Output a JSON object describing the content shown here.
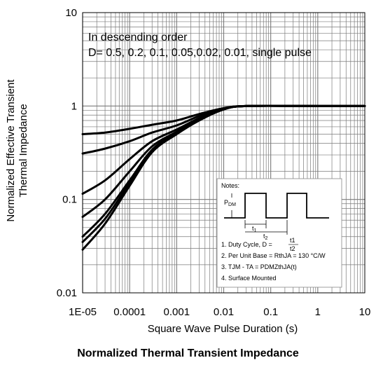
{
  "chart_data": {
    "type": "line",
    "title": "Normalized Thermal Transient Impedance",
    "xlabel": "Square Wave Pulse Duration (s)",
    "ylabel_lines": [
      "Normalized Effective Transient",
      "Thermal Impedance"
    ],
    "xscale": "log",
    "yscale": "log",
    "xlim": [
      1e-05,
      10
    ],
    "ylim": [
      0.01,
      10
    ],
    "x_tick_labels": [
      "1E-05",
      "0.0001",
      "0.001",
      "0.01",
      "0.1",
      "1",
      "10"
    ],
    "y_tick_labels": [
      "10",
      "1",
      "0.1",
      "0.01"
    ],
    "grid": true,
    "annotation_lines": [
      "In descending order",
      "D= 0.5, 0.2, 0.1, 0.05,0.02, 0.01, single pulse"
    ],
    "series": [
      {
        "values": [
          [
            1e-05,
            0.5
          ],
          [
            3e-05,
            0.52
          ],
          [
            0.0001,
            0.57
          ],
          [
            0.0003,
            0.63
          ],
          [
            0.001,
            0.7
          ],
          [
            0.003,
            0.82
          ],
          [
            0.01,
            0.95
          ],
          [
            0.03,
            1
          ],
          [
            1,
            1
          ],
          [
            10,
            1
          ]
        ]
      },
      {
        "values": [
          [
            1e-05,
            0.31
          ],
          [
            3e-05,
            0.35
          ],
          [
            0.0001,
            0.42
          ],
          [
            0.0003,
            0.52
          ],
          [
            0.001,
            0.62
          ],
          [
            0.003,
            0.78
          ],
          [
            0.01,
            0.94
          ],
          [
            0.03,
            1
          ],
          [
            1,
            1
          ],
          [
            10,
            1
          ]
        ]
      },
      {
        "values": [
          [
            1e-05,
            0.115
          ],
          [
            3e-05,
            0.16
          ],
          [
            0.0001,
            0.27
          ],
          [
            0.0003,
            0.42
          ],
          [
            0.001,
            0.56
          ],
          [
            0.003,
            0.74
          ],
          [
            0.01,
            0.93
          ],
          [
            0.03,
            1
          ],
          [
            1,
            1
          ],
          [
            10,
            1
          ]
        ]
      },
      {
        "values": [
          [
            1e-05,
            0.065
          ],
          [
            3e-05,
            0.1
          ],
          [
            0.0001,
            0.2
          ],
          [
            0.0003,
            0.37
          ],
          [
            0.001,
            0.53
          ],
          [
            0.003,
            0.72
          ],
          [
            0.01,
            0.93
          ],
          [
            0.03,
            1
          ],
          [
            1,
            1
          ],
          [
            10,
            1
          ]
        ]
      },
      {
        "values": [
          [
            1e-05,
            0.04
          ],
          [
            3e-05,
            0.07
          ],
          [
            0.0001,
            0.16
          ],
          [
            0.0003,
            0.34
          ],
          [
            0.001,
            0.52
          ],
          [
            0.003,
            0.71
          ],
          [
            0.01,
            0.92
          ],
          [
            0.03,
            1
          ],
          [
            1,
            1
          ],
          [
            10,
            1
          ]
        ]
      },
      {
        "values": [
          [
            1e-05,
            0.035
          ],
          [
            3e-05,
            0.062
          ],
          [
            0.0001,
            0.15
          ],
          [
            0.0003,
            0.33
          ],
          [
            0.001,
            0.51
          ],
          [
            0.003,
            0.71
          ],
          [
            0.01,
            0.92
          ],
          [
            0.03,
            1
          ],
          [
            1,
            1
          ],
          [
            10,
            1
          ]
        ]
      },
      {
        "values": [
          [
            1e-05,
            0.029
          ],
          [
            3e-05,
            0.055
          ],
          [
            0.0001,
            0.14
          ],
          [
            0.0003,
            0.32
          ],
          [
            0.001,
            0.5
          ],
          [
            0.003,
            0.7
          ],
          [
            0.01,
            0.92
          ],
          [
            0.03,
            1
          ],
          [
            1,
            1
          ],
          [
            10,
            1
          ]
        ]
      }
    ],
    "notes": {
      "heading": "Notes:",
      "pdm_label": "P",
      "pdm_sub": "DM",
      "t1_label": "t",
      "t1_sub": "1",
      "t2_label": "t",
      "t2_sub": "2",
      "note1_prefix": "1. Duty Cycle, D = ",
      "note1_num": "t1",
      "note1_den": "t2",
      "note2": "2. Per Unit Base = RthJA = 130 °C/W",
      "note3": "3. TJM - TA = PDMZthJA(t)",
      "note4": "4. Surface Mounted"
    }
  }
}
